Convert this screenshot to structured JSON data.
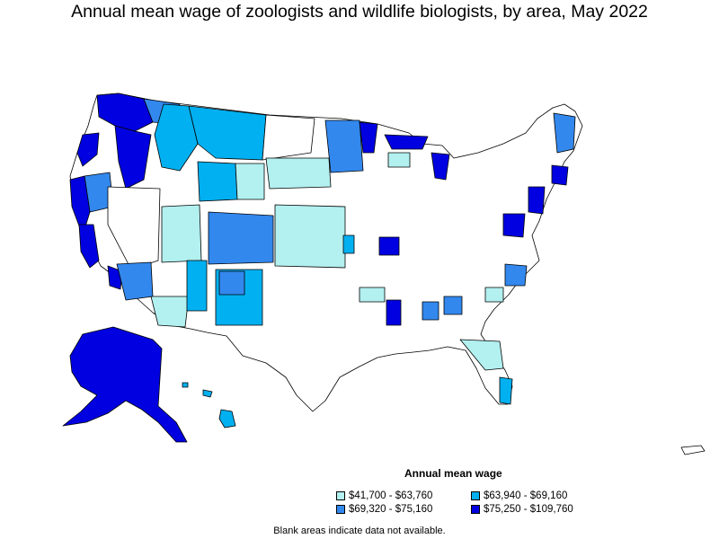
{
  "title": "Annual mean wage of zoologists and wildlife biologists, by area, May 2022",
  "legend": {
    "title": "Annual mean wage",
    "items": [
      {
        "label": "$41,700 - $63,760",
        "color": "#b3f0f0"
      },
      {
        "label": "$63,940 - $69,160",
        "color": "#00b0f0"
      },
      {
        "label": "$69,320 - $75,160",
        "color": "#3388ee"
      },
      {
        "label": "$75,250 - $109,760",
        "color": "#0000e0"
      }
    ]
  },
  "footnote": "Blank areas indicate data not available.",
  "colors": {
    "no_data": "#ffffff",
    "border": "#000000"
  }
}
